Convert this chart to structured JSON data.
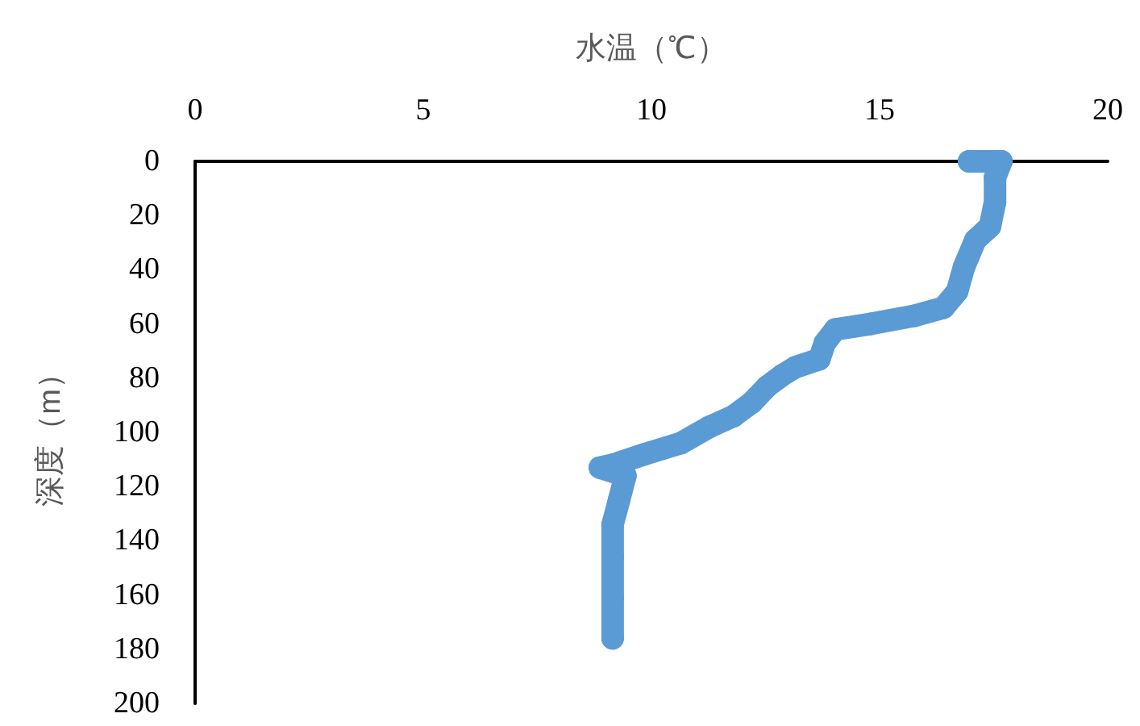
{
  "chart_data": {
    "type": "line",
    "xlabel": "水温（℃）",
    "ylabel": "深度（m）",
    "xlim": [
      0,
      20
    ],
    "xticks": [
      0,
      5,
      10,
      15,
      20
    ],
    "ylim": [
      200,
      0
    ],
    "yticks": [
      0,
      20,
      40,
      60,
      80,
      100,
      120,
      140,
      160,
      180,
      200
    ],
    "grid": false,
    "marker": "circle",
    "line_style": "solid",
    "series": [
      {
        "color": "#5b9bd5",
        "x": [
          16.96,
          17.67,
          17.53,
          17.53,
          17.42,
          17.1,
          16.85,
          16.7,
          16.4,
          15.76,
          14.8,
          14.03,
          13.8,
          13.68,
          13.15,
          12.86,
          12.54,
          12.2,
          11.8,
          11.27,
          10.64,
          9.86,
          9.15,
          8.87,
          9.43,
          9.29,
          9.15,
          9.15,
          9.15,
          9.15
        ],
        "values": [
          0,
          0,
          6,
          15,
          24,
          29,
          39,
          48,
          54,
          57,
          60,
          62,
          67,
          73,
          76,
          79,
          83,
          89,
          94,
          98,
          104,
          108,
          112,
          113,
          116,
          125,
          134,
          146,
          161,
          176
        ]
      }
    ]
  }
}
